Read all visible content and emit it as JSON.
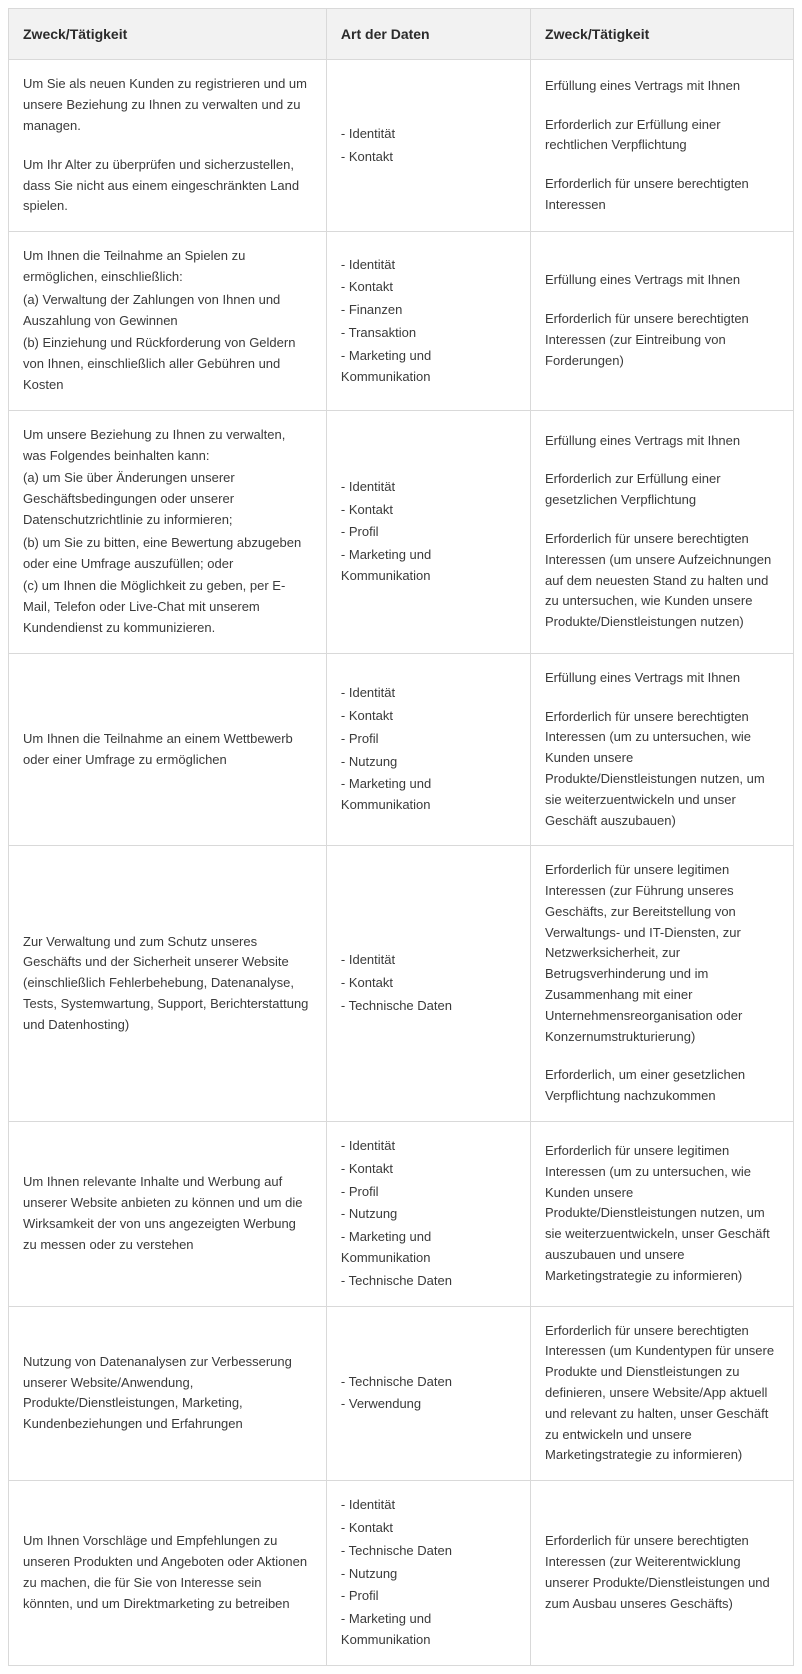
{
  "table": {
    "border_color": "#d9d9d9",
    "header_bg": "#f2f2f2",
    "text_color": "#3a3a3a",
    "font_size_body": 13,
    "font_size_header": 14,
    "columns": [
      {
        "label": "Zweck/Tätigkeit",
        "width_pct": 40.5
      },
      {
        "label": "Art der Daten",
        "width_pct": 26.0
      },
      {
        "label": "Zweck/Tätigkeit",
        "width_pct": 33.5
      }
    ],
    "rows": [
      {
        "purpose": [
          "Um Sie als neuen Kunden zu registrieren und um unsere Beziehung zu Ihnen zu verwalten und zu managen.",
          "Um Ihr Alter zu überprüfen und sicherzustellen, dass Sie nicht aus einem eingeschränkten Land spielen."
        ],
        "data_types": [
          "- Identität",
          "- Kontakt"
        ],
        "basis": [
          "Erfüllung eines Vertrags mit Ihnen",
          "Erforderlich zur Erfüllung einer rechtlichen Verpflichtung",
          "Erforderlich für unsere berechtigten Interessen"
        ]
      },
      {
        "purpose": [
          "Um Ihnen die Teilnahme an Spielen zu ermöglichen, einschließlich:",
          "(a) Verwaltung der Zahlungen von Ihnen und Auszahlung von Gewinnen",
          "(b) Einziehung und Rückforderung von Geldern von Ihnen, einschließlich aller Gebühren und Kosten"
        ],
        "purpose_tight": true,
        "data_types": [
          "- Identität",
          "- Kontakt",
          "- Finanzen",
          "- Transaktion",
          "- Marketing und Kommunikation"
        ],
        "basis": [
          "Erfüllung eines Vertrags mit Ihnen",
          "Erforderlich für unsere berechtigten Interessen (zur Eintreibung von Forderungen)"
        ]
      },
      {
        "purpose": [
          "Um unsere Beziehung zu Ihnen zu verwalten, was Folgendes beinhalten kann:",
          "(a) um Sie über Änderungen unserer Geschäftsbedingungen oder unserer Datenschutzrichtlinie zu informieren;",
          "(b) um Sie zu bitten, eine Bewertung abzugeben oder eine Umfrage auszufüllen; oder",
          "(c) um Ihnen die Möglichkeit zu geben, per E-Mail, Telefon oder Live-Chat mit unserem Kundendienst zu kommunizieren."
        ],
        "purpose_tight": true,
        "data_types": [
          "- Identität",
          "- Kontakt",
          "- Profil",
          "- Marketing und Kommunikation"
        ],
        "basis": [
          "Erfüllung eines Vertrags mit Ihnen",
          "Erforderlich zur Erfüllung einer gesetzlichen Verpflichtung",
          "Erforderlich für unsere berechtigten Interessen (um unsere Aufzeichnungen auf dem neuesten Stand zu halten und zu untersuchen, wie Kunden unsere Produkte/Dienstleistungen nutzen)"
        ]
      },
      {
        "purpose": [
          "Um Ihnen die Teilnahme an einem Wettbewerb oder einer Umfrage zu ermöglichen"
        ],
        "data_types": [
          "- Identität",
          "- Kontakt",
          "- Profil",
          "- Nutzung",
          "- Marketing und Kommunikation"
        ],
        "basis": [
          "Erfüllung eines Vertrags mit Ihnen",
          "Erforderlich für unsere berechtigten Interessen (um zu untersuchen, wie Kunden unsere Produkte/Dienstleistungen nutzen, um sie weiterzuentwickeln und unser Geschäft auszubauen)"
        ]
      },
      {
        "purpose": [
          "Zur Verwaltung und zum Schutz unseres Geschäfts und der Sicherheit unserer Website (einschließlich Fehlerbehebung, Datenanalyse, Tests, Systemwartung, Support, Berichterstattung und Datenhosting)"
        ],
        "data_types": [
          "- Identität",
          "- Kontakt",
          "- Technische Daten"
        ],
        "basis": [
          "Erforderlich für unsere legitimen Interessen (zur Führung unseres Geschäfts, zur Bereitstellung von Verwaltungs- und IT-Diensten, zur Netzwerksicherheit, zur Betrugsverhinderung und im Zusammenhang mit einer Unternehmensreorganisation oder Konzernumstrukturierung)",
          "Erforderlich, um einer gesetzlichen Verpflichtung nachzukommen"
        ]
      },
      {
        "purpose": [
          "Um Ihnen relevante Inhalte und Werbung auf unserer Website anbieten zu können und um die Wirksamkeit der von uns angezeigten Werbung zu messen oder zu verstehen"
        ],
        "data_types": [
          "- Identität",
          "- Kontakt",
          "- Profil",
          "- Nutzung",
          "- Marketing und Kommunikation",
          "- Technische Daten"
        ],
        "basis": [
          "Erforderlich für unsere legitimen Interessen (um zu untersuchen, wie Kunden unsere Produkte/Dienstleistungen nutzen, um sie weiterzuentwickeln, unser Geschäft auszubauen und unsere Marketingstrategie zu informieren)"
        ]
      },
      {
        "purpose": [
          "Nutzung von Datenanalysen zur Verbesserung unserer Website/Anwendung, Produkte/Dienstleistungen, Marketing, Kundenbeziehungen und Erfahrungen"
        ],
        "data_types": [
          "- Technische Daten",
          "- Verwendung"
        ],
        "basis": [
          "Erforderlich für unsere berechtigten Interessen (um Kundentypen für unsere Produkte und Dienstleistungen zu definieren, unsere Website/App aktuell und relevant zu halten, unser Geschäft zu entwickeln und unsere Marketingstrategie zu informieren)"
        ]
      },
      {
        "purpose": [
          "Um Ihnen Vorschläge und Empfehlungen zu unseren Produkten und Angeboten oder Aktionen zu machen, die für Sie von Interesse sein könnten, und um Direktmarketing zu betreiben"
        ],
        "data_types": [
          "- Identität",
          "- Kontakt",
          "- Technische Daten",
          "- Nutzung",
          "- Profil",
          "- Marketing und Kommunikation"
        ],
        "basis": [
          "Erforderlich für unsere berechtigten Interessen (zur Weiterentwicklung unserer Produkte/Dienstleistungen und zum Ausbau unseres Geschäfts)"
        ]
      }
    ]
  }
}
